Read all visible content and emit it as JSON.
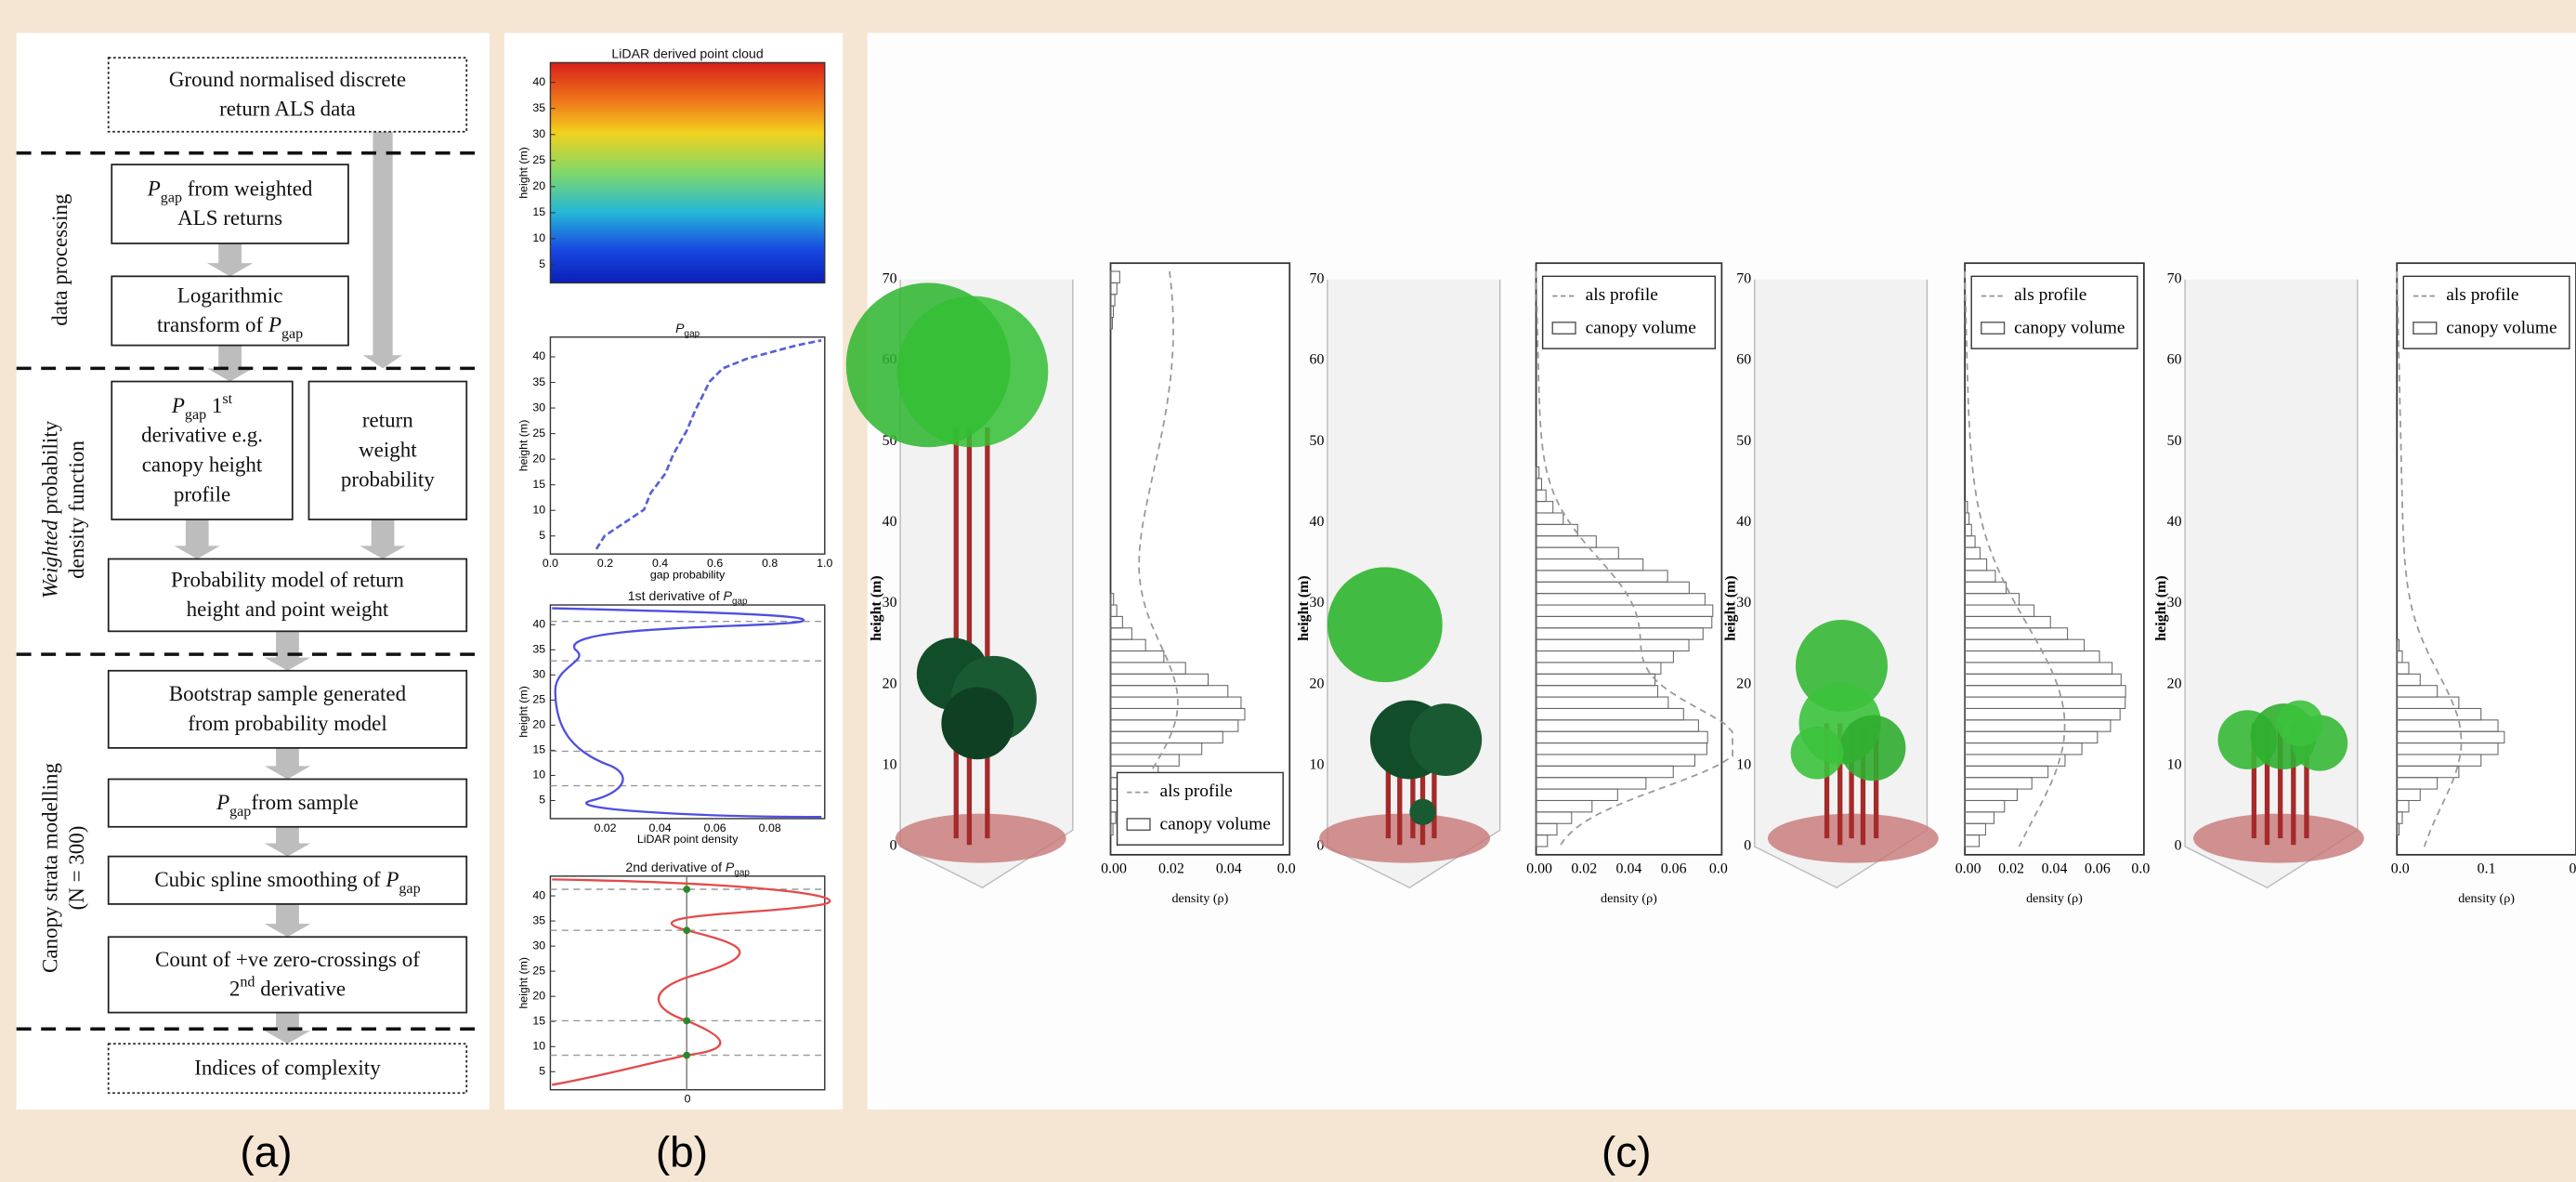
{
  "panel_a": {
    "label": "(a)",
    "boxes": [
      {
        "lines": [
          [
            "Ground normalised discrete"
          ],
          [
            "return ALS data"
          ]
        ]
      },
      {
        "lines": [
          [
            {
              "i": "P"
            },
            {
              "sub": "gap"
            },
            " from  weighted"
          ],
          [
            "ALS returns"
          ]
        ]
      },
      {
        "lines": [
          [
            "Logarithmic"
          ],
          [
            "transform of ",
            {
              "i": "P"
            },
            {
              "sub": "gap"
            }
          ]
        ]
      },
      {
        "lines": [
          [
            {
              "i": "P"
            },
            {
              "sub": "gap"
            },
            " 1",
            {
              "sup": "st"
            }
          ],
          [
            "derivative e.g."
          ],
          [
            "canopy height"
          ],
          [
            "profile"
          ]
        ]
      },
      {
        "lines": [
          [
            "return"
          ],
          [
            "weight"
          ],
          [
            "probability"
          ]
        ]
      },
      {
        "lines": [
          [
            "Probability model of return"
          ],
          [
            "height and point weight"
          ]
        ]
      },
      {
        "lines": [
          [
            "Bootstrap sample generated"
          ],
          [
            "from probability model"
          ]
        ]
      },
      {
        "lines": [
          [
            {
              "i": "P"
            },
            {
              "sub": "gap"
            },
            "from  sample"
          ]
        ]
      },
      {
        "lines": [
          [
            "Cubic spline smoothing of ",
            {
              "i": "P"
            },
            {
              "sub": "gap"
            }
          ]
        ]
      },
      {
        "lines": [
          [
            "Count of +ve zero-crossings of"
          ],
          [
            "2",
            {
              "sup": "nd"
            },
            " derivative"
          ]
        ]
      },
      {
        "lines": [
          [
            "Indices of complexity"
          ]
        ]
      }
    ],
    "sections": [
      {
        "lines": [
          [
            "data processing"
          ]
        ]
      },
      {
        "lines": [
          [
            {
              "i": "Weighted"
            },
            " probability"
          ],
          [
            "density function"
          ]
        ]
      },
      {
        "lines": [
          [
            "Canopy strata modelling"
          ],
          [
            "(N = 300)"
          ]
        ]
      }
    ]
  },
  "panel_b": {
    "label": "(b)",
    "plots": [
      {
        "title": [
          [
            "LiDAR derived point cloud"
          ]
        ],
        "ylabel": "height (m)",
        "yticks": [
          "5",
          "10",
          "15",
          "20",
          "25",
          "30",
          "35",
          "40"
        ],
        "xticks": []
      },
      {
        "title": [
          [
            {
              "i": "P"
            },
            {
              "sub": "gap"
            }
          ]
        ],
        "ylabel": "height (m)",
        "yticks": [
          "5",
          "10",
          "15",
          "20",
          "25",
          "30",
          "35",
          "40"
        ],
        "xticks": [
          "0.0",
          "0.2",
          "0.4",
          "0.6",
          "0.8",
          "1.0"
        ],
        "xlabel": "gap probability"
      },
      {
        "title": [
          [
            "1st derivative of ",
            {
              "i": "P"
            },
            {
              "sub": "gap"
            }
          ]
        ],
        "ylabel": "height (m)",
        "yticks": [
          "5",
          "10",
          "15",
          "20",
          "25",
          "30",
          "35",
          "40"
        ],
        "xticks": [
          "0.02",
          "0.04",
          "0.06",
          "0.08"
        ],
        "xlabel": "LiDAR point density"
      },
      {
        "title": [
          [
            "2nd derivative of ",
            {
              "i": "P"
            },
            {
              "sub": "gap"
            }
          ]
        ],
        "ylabel": "height (m)",
        "yticks": [
          "5",
          "10",
          "15",
          "20",
          "25",
          "30",
          "35",
          "40"
        ],
        "xticks": [
          "0"
        ]
      }
    ]
  },
  "panel_c": {
    "label": "(c)",
    "trees": [
      {
        "ylabel": "height (m)",
        "yticks": [
          "0",
          "10",
          "20",
          "30",
          "40",
          "50",
          "60",
          "70"
        ]
      },
      {
        "ylabel": "height (m)",
        "yticks": [
          "0",
          "10",
          "20",
          "30",
          "40",
          "50",
          "60",
          "70"
        ]
      },
      {
        "ylabel": "height (m)",
        "yticks": [
          "0",
          "10",
          "20",
          "30",
          "40",
          "50",
          "60",
          "70"
        ]
      },
      {
        "ylabel": "height (m)",
        "yticks": [
          "0",
          "10",
          "20",
          "30",
          "40",
          "50",
          "60",
          "70"
        ]
      }
    ],
    "histograms": [
      {
        "xlabel": "density (ρ)",
        "xticks": [
          "0.00",
          "0.02",
          "0.04",
          "0.0"
        ],
        "legend": [
          "als profile",
          "canopy volume"
        ]
      },
      {
        "xlabel": "density (ρ)",
        "xticks": [
          "0.00",
          "0.02",
          "0.04",
          "0.06",
          "0.0"
        ],
        "legend": [
          "als profile",
          "canopy volume"
        ]
      },
      {
        "xlabel": "density (ρ)",
        "xticks": [
          "0.00",
          "0.02",
          "0.04",
          "0.06",
          "0.0"
        ],
        "legend": [
          "als profile",
          "canopy volume"
        ]
      },
      {
        "xlabel": "density (ρ)",
        "xticks": [
          "0.0",
          "0.1",
          "0"
        ],
        "legend": [
          "als profile",
          "canopy volume"
        ]
      }
    ]
  }
}
